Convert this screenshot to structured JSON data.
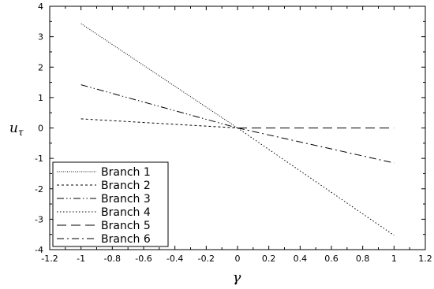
{
  "chart_data": {
    "type": "line",
    "xlabel": "γ",
    "ylabel": "u",
    "ylabel_sub": "τ",
    "xlim": [
      -1.2,
      1.2
    ],
    "ylim": [
      -4,
      4
    ],
    "xticks": [
      -1.2,
      -1,
      -0.8,
      -0.6,
      -0.4,
      -0.2,
      0,
      0.2,
      0.4,
      0.6,
      0.8,
      1,
      1.2
    ],
    "yticks": [
      -4,
      -3,
      -2,
      -1,
      0,
      1,
      2,
      3,
      4
    ],
    "legend_position": "bottom-left",
    "series": [
      {
        "name": "Branch 1",
        "dash": "dotted-fine",
        "points": [
          [
            -1,
            3.43
          ],
          [
            0,
            0
          ]
        ]
      },
      {
        "name": "Branch 2",
        "dash": "dashed-short",
        "points": [
          [
            -1,
            0.3
          ],
          [
            0,
            0
          ]
        ]
      },
      {
        "name": "Branch 3",
        "dash": "dash-dot-dot",
        "points": [
          [
            -1,
            1.42
          ],
          [
            0,
            0
          ]
        ]
      },
      {
        "name": "Branch 4",
        "dash": "dotted",
        "points": [
          [
            0,
            0
          ],
          [
            1,
            -3.53
          ]
        ]
      },
      {
        "name": "Branch 5",
        "dash": "dashed-long",
        "points": [
          [
            0,
            0
          ],
          [
            1,
            0
          ]
        ]
      },
      {
        "name": "Branch 6",
        "dash": "dash-dot",
        "points": [
          [
            0,
            0
          ],
          [
            1,
            -1.15
          ]
        ]
      }
    ]
  }
}
